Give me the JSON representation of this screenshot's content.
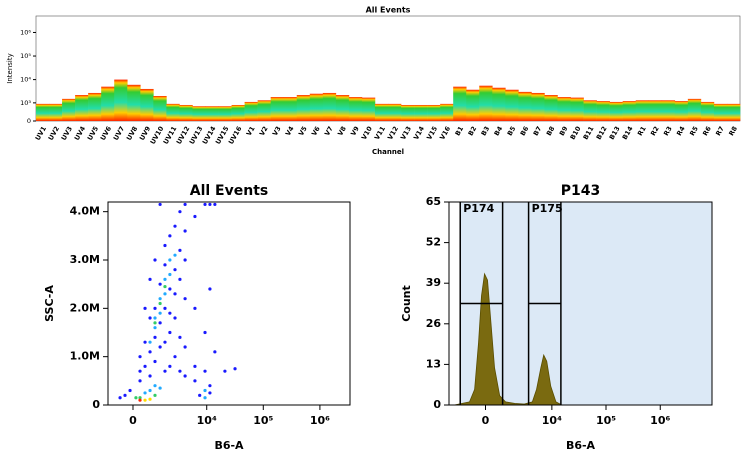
{
  "chart_data": [
    {
      "type": "heatmap",
      "title": "All Events",
      "y_label": "Intensity",
      "x_label": "Channel",
      "y_scale": "biexponential",
      "categories": [
        "UV1",
        "UV2",
        "UV3",
        "UV4",
        "UV5",
        "UV6",
        "UV7",
        "UV8",
        "UV9",
        "UV10",
        "UV11",
        "UV12",
        "UV13",
        "UV14",
        "UV15",
        "UV16",
        "V1",
        "V2",
        "V3",
        "V4",
        "V5",
        "V6",
        "V7",
        "V8",
        "V9",
        "V10",
        "V11",
        "V12",
        "V13",
        "V14",
        "V15",
        "V16",
        "B1",
        "B2",
        "B3",
        "B4",
        "B5",
        "B6",
        "B7",
        "B8",
        "B9",
        "B10",
        "B11",
        "B12",
        "B13",
        "B14",
        "R1",
        "R2",
        "R3",
        "R4",
        "R5",
        "R6",
        "R7",
        "R8"
      ],
      "values": [
        900,
        900,
        1500,
        2200,
        2700,
        5000,
        10000,
        6000,
        4000,
        2000,
        900,
        800,
        700,
        700,
        700,
        800,
        1100,
        1300,
        1800,
        1800,
        2200,
        2500,
        2700,
        2200,
        1800,
        1700,
        900,
        900,
        800,
        800,
        800,
        900,
        5000,
        3700,
        5500,
        4500,
        3700,
        3000,
        2700,
        2200,
        1800,
        1700,
        1300,
        1200,
        1100,
        1200,
        1300,
        1300,
        1300,
        1200,
        1500,
        1100,
        900,
        900
      ],
      "ylim": [
        0,
        5000000
      ],
      "yticks": [
        0,
        {
          "value": 1000,
          "label": "10³"
        },
        {
          "value": 10000,
          "label": "10⁴"
        },
        {
          "value": 100000,
          "label": "10⁵"
        },
        {
          "value": 1000000,
          "label": "10⁶"
        }
      ]
    },
    {
      "type": "scatter",
      "title": "All Events",
      "x_label": "B6-A",
      "y_label": "SSC-A",
      "x_scale": "biexponential",
      "xlim": [
        -1200,
        3400000
      ],
      "xticks": [
        0,
        {
          "value": 10000,
          "label": "10⁴"
        },
        {
          "value": 100000,
          "label": "10⁵"
        },
        {
          "value": 1000000,
          "label": "10⁶"
        }
      ],
      "ylim": [
        0,
        4200000
      ],
      "yticks": [
        0,
        {
          "value": 1000000,
          "label": "1.0M"
        },
        {
          "value": 2000000,
          "label": "2.0M"
        },
        {
          "value": 3000000,
          "label": "3.0M"
        },
        {
          "value": 4000000,
          "label": "4.0M"
        }
      ],
      "x": [
        290,
        510,
        750,
        1020,
        1340,
        1700,
        2130,
        2670,
        3300,
        4100,
        1020,
        1340,
        1700,
        750,
        2130,
        2670,
        3300,
        4100,
        510,
        1700,
        2670,
        6170,
        9330,
        11400,
        13950,
        1340,
        4100,
        6170,
        9330,
        11400,
        13950,
        21000,
        31700,
        9330,
        6170,
        4100,
        -120,
        -330,
        -550,
        290,
        510,
        750,
        1020,
        2130,
        3300,
        2130,
        3300,
        4100,
        6170,
        1700,
        1020,
        1340,
        1340,
        1700,
        1700,
        2130,
        1020,
        2130,
        750,
        2670,
        1340,
        1700,
        1020,
        750,
        1020,
        1340,
        510,
        290,
        510,
        290,
        750,
        120,
        1020,
        9330,
        11400,
        7500,
        9330,
        11400,
        1340,
        2130,
        2670,
        1020,
        1700,
        750,
        2670,
        3300,
        290,
        4100
      ],
      "y": [
        500000,
        800000,
        1100000,
        1400000,
        1700000,
        2000000,
        2400000,
        2800000,
        3200000,
        3600000,
        2000000,
        2500000,
        2900000,
        1800000,
        1900000,
        2300000,
        2600000,
        3000000,
        1300000,
        3300000,
        3700000,
        3900000,
        4150000,
        4150000,
        4150000,
        4150000,
        4150000,
        2000000,
        1500000,
        2400000,
        1100000,
        700000,
        750000,
        700000,
        800000,
        1200000,
        300000,
        200000,
        150000,
        1000000,
        2000000,
        2600000,
        3000000,
        3500000,
        4000000,
        800000,
        700000,
        600000,
        500000,
        700000,
        1600000,
        1900000,
        2200000,
        2300000,
        2600000,
        2700000,
        1800000,
        3000000,
        1300000,
        3100000,
        2100000,
        2450000,
        1700000,
        300000,
        400000,
        350000,
        250000,
        150000,
        100000,
        100000,
        120000,
        150000,
        200000,
        300000,
        250000,
        200000,
        150000,
        400000,
        1200000,
        1500000,
        1800000,
        900000,
        1300000,
        600000,
        1000000,
        1400000,
        700000,
        2200000
      ],
      "colors": [
        "#1a1aff",
        "#1a1aff",
        "#1a1aff",
        "#1a1aff",
        "#1a1aff",
        "#1a1aff",
        "#1a1aff",
        "#1a1aff",
        "#1a1aff",
        "#1a1aff",
        "#1a1aff",
        "#1a1aff",
        "#1a1aff",
        "#1a1aff",
        "#1a1aff",
        "#1a1aff",
        "#1a1aff",
        "#1a1aff",
        "#1a1aff",
        "#1a1aff",
        "#1a1aff",
        "#1a1aff",
        "#1a1aff",
        "#1a1aff",
        "#1a1aff",
        "#1a1aff",
        "#1a1aff",
        "#1a1aff",
        "#1a1aff",
        "#1a1aff",
        "#1a1aff",
        "#1a1aff",
        "#1a1aff",
        "#1a1aff",
        "#1a1aff",
        "#1a1aff",
        "#1a1aff",
        "#1a1aff",
        "#1a1aff",
        "#1a1aff",
        "#1a1aff",
        "#1a1aff",
        "#1a1aff",
        "#1a1aff",
        "#1a1aff",
        "#1a1aff",
        "#1a1aff",
        "#1a1aff",
        "#1a1aff",
        "#1a1aff",
        "#22aaff",
        "#22aaff",
        "#22aaff",
        "#22aaff",
        "#22aaff",
        "#22aaff",
        "#22aaff",
        "#22aaff",
        "#22aaff",
        "#22aaff",
        "#33cc66",
        "#33cc66",
        "#33cc66",
        "#22aaff",
        "#22aaff",
        "#22aaff",
        "#22aaff",
        "#33cc66",
        "#ffdd00",
        "#ff2200",
        "#ffdd00",
        "#33cc66",
        "#33cc66",
        "#22aaff",
        "#1a1aff",
        "#1a1aff",
        "#22aaff",
        "#1a1aff",
        "#1a1aff",
        "#1a1aff",
        "#1a1aff",
        "#1a1aff",
        "#1a1aff",
        "#1a1aff",
        "#1a1aff",
        "#1a1aff",
        "#1a1aff",
        "#1a1aff"
      ]
    },
    {
      "type": "area",
      "title": "P143",
      "x_label": "B6-A",
      "y_label": "Count",
      "x_scale": "biexponential",
      "color": "#7a6a10",
      "xlim": [
        -2700,
        9000000
      ],
      "xticks": [
        0,
        {
          "value": 10000,
          "label": "10⁴"
        },
        {
          "value": 100000,
          "label": "10⁵"
        },
        {
          "value": 1000000,
          "label": "10⁶"
        }
      ],
      "ylim": [
        0,
        65
      ],
      "yticks": [
        0,
        13,
        26,
        39,
        52,
        65
      ],
      "x": [
        -2100,
        -880,
        -575,
        -360,
        -205,
        -50,
        102,
        257,
        470,
        765,
        1150,
        1900,
        3000,
        4300,
        5170,
        6240,
        7050,
        8030,
        9540,
        11900,
        15300
      ],
      "values": [
        0,
        1,
        5,
        20,
        35,
        42,
        40,
        28,
        12,
        3,
        1,
        0.5,
        0.3,
        1,
        5,
        12,
        16,
        14,
        6,
        1,
        0
      ],
      "gates": [
        {
          "name": "P174",
          "range": [
            -1550,
            950
          ],
          "level": 32.5
        },
        {
          "name": "P175",
          "range": [
            3640,
            14700
          ],
          "level": 32.5
        }
      ]
    }
  ]
}
